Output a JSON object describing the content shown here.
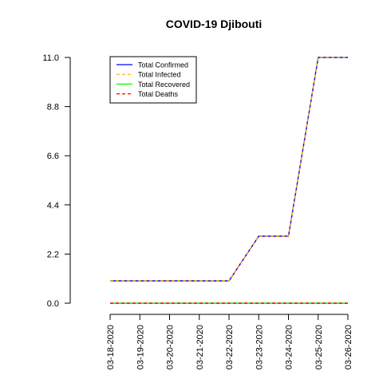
{
  "chart_data": {
    "type": "line",
    "title": "COVID-19 Djibouti",
    "xlabel": "",
    "ylabel": "",
    "categories": [
      "03-18-2020",
      "03-19-2020",
      "03-20-2020",
      "03-21-2020",
      "03-22-2020",
      "03-23-2020",
      "03-24-2020",
      "03-25-2020",
      "03-26-2020"
    ],
    "y_ticks": [
      "0.0",
      "2.2",
      "4.4",
      "6.6",
      "8.8",
      "11.0"
    ],
    "ylim": [
      0,
      11
    ],
    "grid": false,
    "legend_position": "top-left",
    "series": [
      {
        "name": "Total Confirmed",
        "color": "#0000ff",
        "dash": "solid",
        "values": [
          1,
          1,
          1,
          1,
          1,
          3,
          3,
          11,
          11
        ]
      },
      {
        "name": "Total Infected",
        "color": "#ffa500",
        "dash": "dashed",
        "values": [
          1,
          1,
          1,
          1,
          1,
          3,
          3,
          11,
          11
        ]
      },
      {
        "name": "Total Recovered",
        "color": "#00ff00",
        "dash": "solid",
        "values": [
          0,
          0,
          0,
          0,
          0,
          0,
          0,
          0,
          0
        ]
      },
      {
        "name": "Total Deaths",
        "color": "#ff0000",
        "dash": "dashed",
        "values": [
          0,
          0,
          0,
          0,
          0,
          0,
          0,
          0,
          0
        ]
      }
    ]
  }
}
